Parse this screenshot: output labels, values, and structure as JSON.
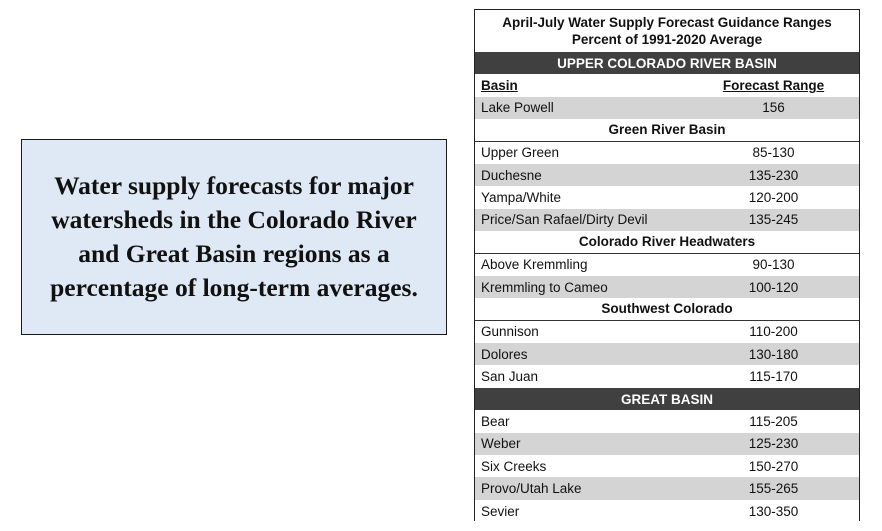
{
  "callout": {
    "text": "Water supply forecasts for major watersheds in the Colorado River and Great Basin regions as a percentage of long-term averages."
  },
  "table": {
    "title_line1": "April-July Water Supply Forecast Guidance Ranges",
    "title_line2": "Percent of 1991-2020 Average",
    "upper_colorado_header": "UPPER COLORADO RIVER BASIN",
    "col_basin": "Basin",
    "col_range": "Forecast Range",
    "lake_powell": {
      "basin": "Lake Powell",
      "range": "156"
    },
    "green_river": {
      "title": "Green River Basin",
      "rows": [
        {
          "basin": "Upper Green",
          "range": "85-130"
        },
        {
          "basin": "Duchesne",
          "range": "135-230"
        },
        {
          "basin": "Yampa/White",
          "range": "120-200"
        },
        {
          "basin": "Price/San Rafael/Dirty Devil",
          "range": "135-245"
        }
      ]
    },
    "headwaters": {
      "title": "Colorado River Headwaters",
      "rows": [
        {
          "basin": "Above Kremmling",
          "range": "90-130"
        },
        {
          "basin": "Kremmling to Cameo",
          "range": "100-120"
        }
      ]
    },
    "southwest": {
      "title": "Southwest Colorado",
      "rows": [
        {
          "basin": "Gunnison",
          "range": "110-200"
        },
        {
          "basin": "Dolores",
          "range": "130-180"
        },
        {
          "basin": "San Juan",
          "range": "115-170"
        }
      ]
    },
    "great_basin": {
      "title": "GREAT BASIN",
      "rows": [
        {
          "basin": "Bear",
          "range": "115-205"
        },
        {
          "basin": "Weber",
          "range": "125-230"
        },
        {
          "basin": "Six Creeks",
          "range": "150-270"
        },
        {
          "basin": "Provo/Utah Lake",
          "range": "155-265"
        },
        {
          "basin": "Sevier",
          "range": "130-350"
        }
      ]
    }
  }
}
